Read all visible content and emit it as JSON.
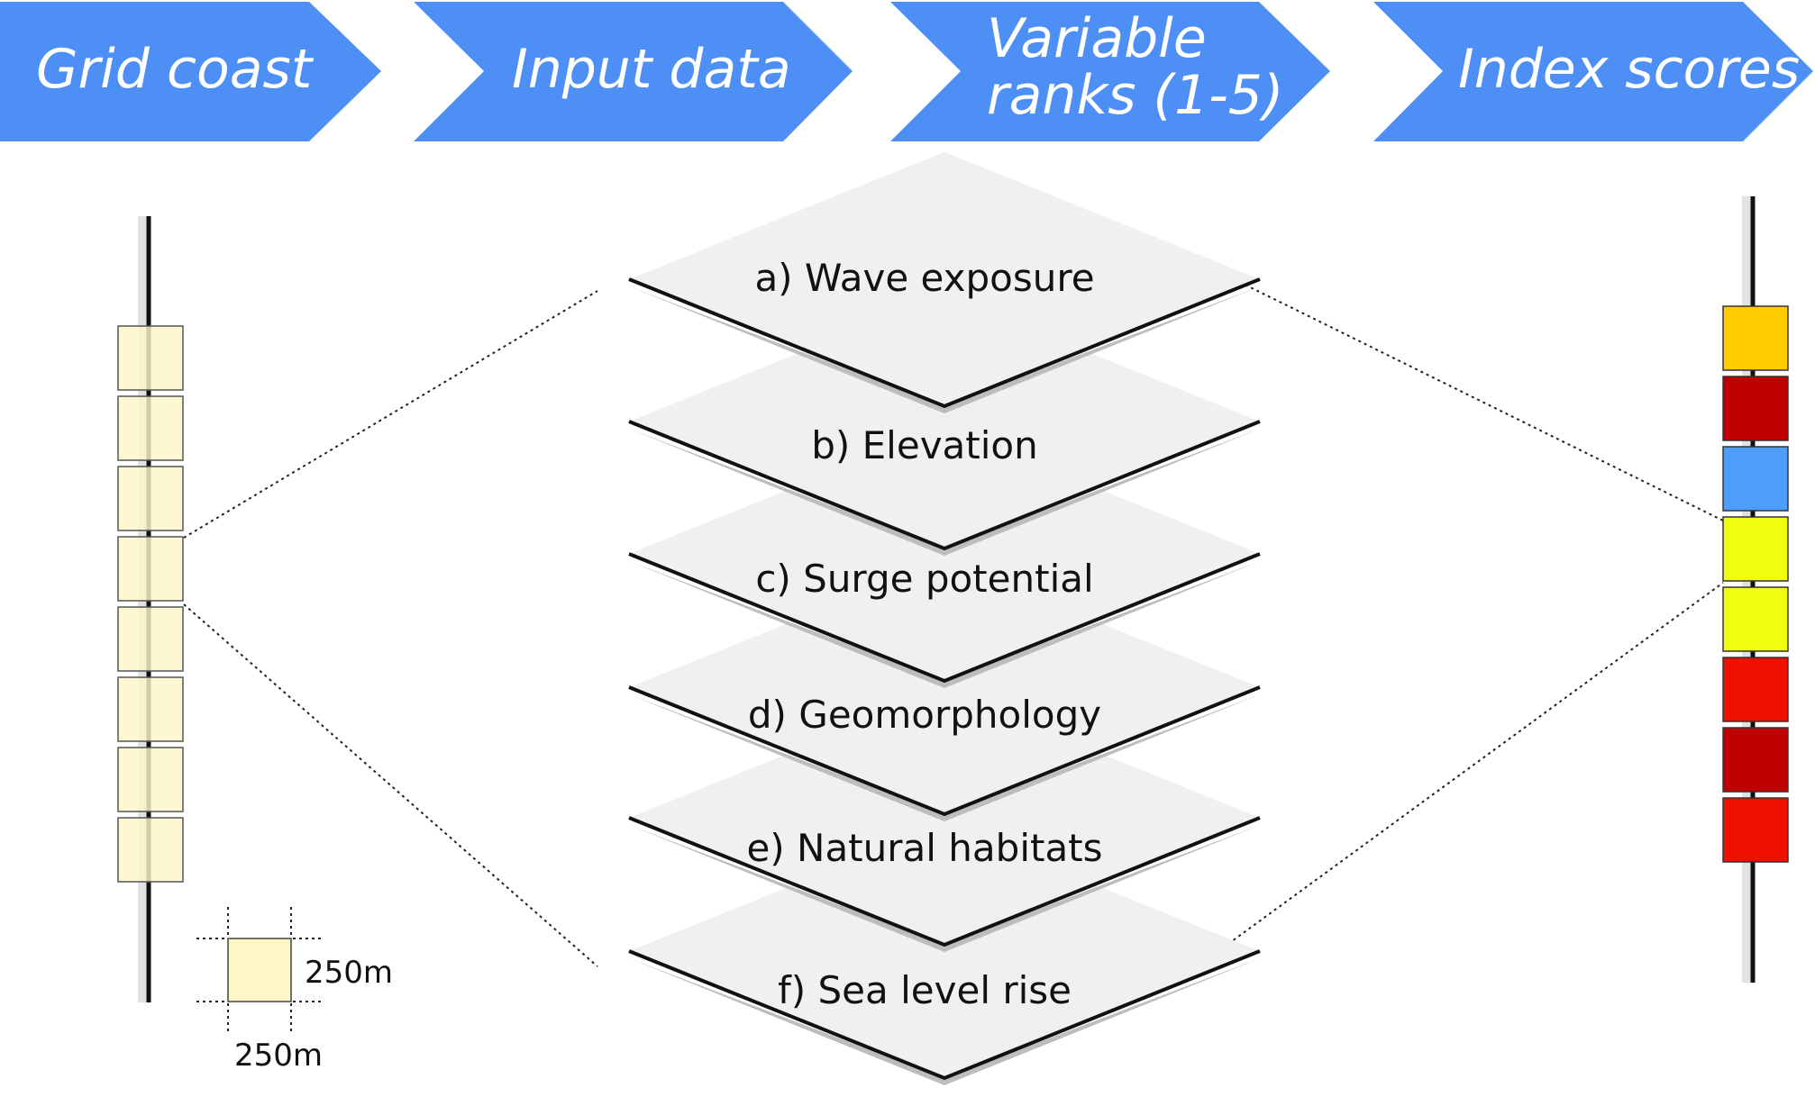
{
  "steps": [
    {
      "label": "Grid coast"
    },
    {
      "label": "Input data"
    },
    {
      "label": "Variable",
      "label2": "ranks (1-5)"
    },
    {
      "label": "Index scores"
    }
  ],
  "layers": [
    {
      "label": "a) Wave exposure"
    },
    {
      "label": "b) Elevation"
    },
    {
      "label": "c) Surge potential"
    },
    {
      "label": "d) Geomorphology"
    },
    {
      "label": "e) Natural habitats"
    },
    {
      "label": "f) Sea level rise"
    }
  ],
  "grid_cell": {
    "height_label": "250m",
    "width_label": "250m",
    "color": "#fdf7c8"
  },
  "index_cells": [
    {
      "color": "#ffcc00"
    },
    {
      "color": "#c00000"
    },
    {
      "color": "#4d9dfa"
    },
    {
      "color": "#f0ff10"
    },
    {
      "color": "#f0ff10"
    },
    {
      "color": "#ee1100"
    },
    {
      "color": "#c00000"
    },
    {
      "color": "#ee1100"
    }
  ],
  "colors": {
    "arrow_blue": "#4d8ff5",
    "layer_fill": "#f0f0f0",
    "layer_shadow": "#bdbdbd"
  }
}
